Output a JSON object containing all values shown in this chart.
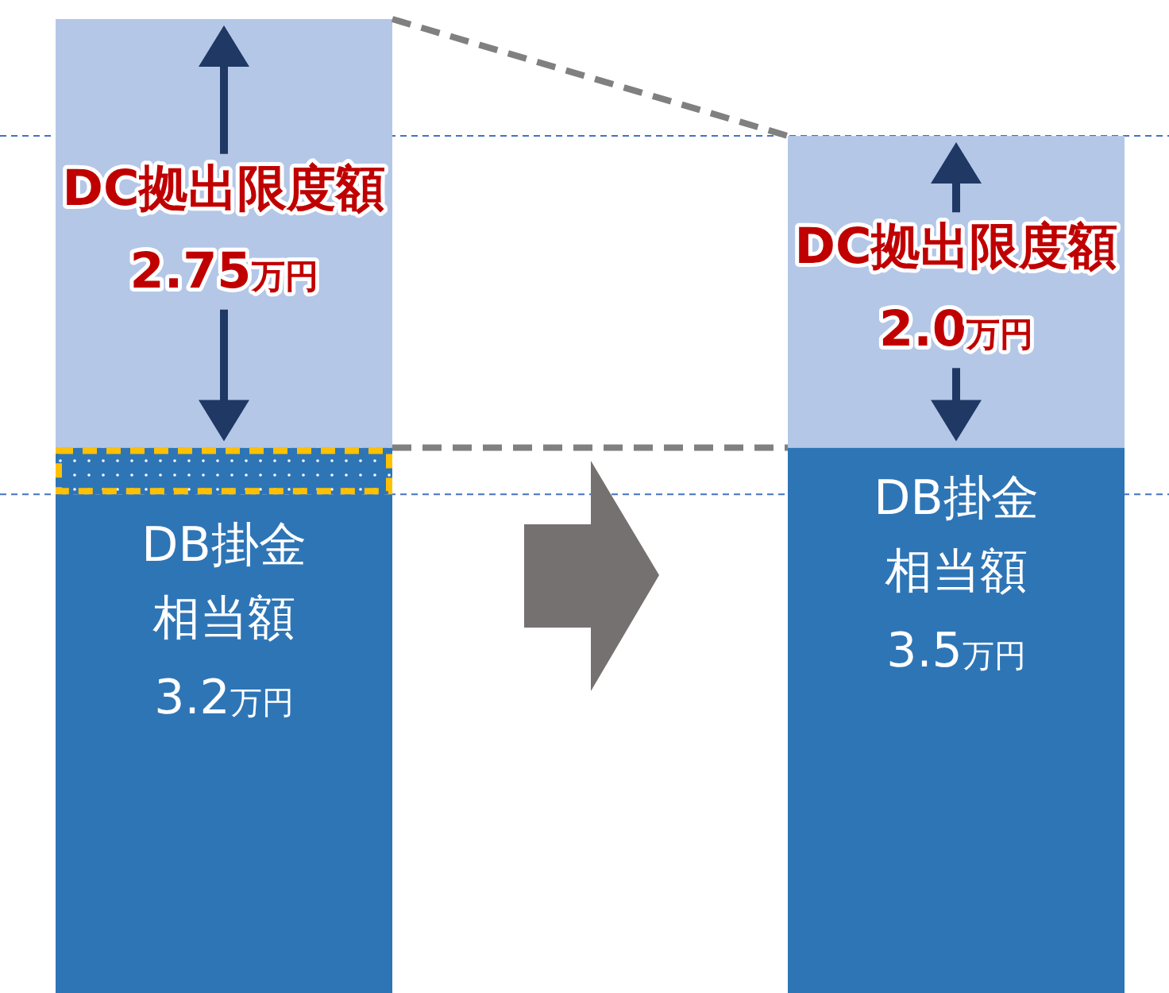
{
  "chart_data": {
    "type": "bar",
    "stacked": true,
    "categories": [
      null,
      null
    ],
    "series": [
      {
        "name": "DB掛金相当額",
        "color": "#2e75b6",
        "values": [
          3.2,
          3.5
        ],
        "value_labels": [
          "3.2万円",
          "3.5万円"
        ]
      },
      {
        "color": "#2e75b6",
        "line_style": "dashed",
        "values": [
          0.3,
          0
        ]
      },
      {
        "name": "DC拠出限度額",
        "color": "#b4c7e7",
        "values": [
          2.75,
          2.0
        ],
        "value_labels": [
          "2.75万円",
          "2.0万円"
        ]
      }
    ],
    "ref_lines": [
      {
        "axis": "y",
        "value": 5.5,
        "color": "#4472c4",
        "line_style": "dashed"
      },
      {
        "axis": "y",
        "value": 3.2,
        "color": "#4472c4",
        "line_style": "dashed"
      }
    ]
  }
}
